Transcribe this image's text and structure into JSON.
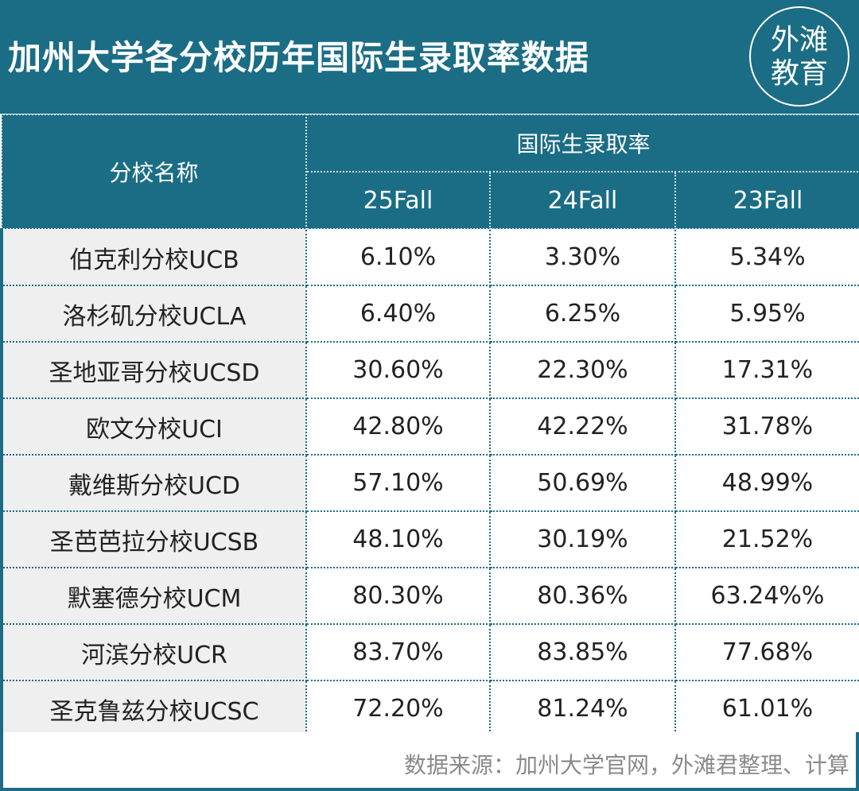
{
  "header": {
    "title": "加州大学各分校历年国际生录取率数据",
    "logo_line1": "外滩",
    "logo_line2": "教育"
  },
  "table": {
    "school_header": "分校名称",
    "rate_group_header": "国际生录取率",
    "years": [
      "25Fall",
      "24Fall",
      "23Fall"
    ],
    "rows": [
      {
        "name": "伯克利分校UCB",
        "values": [
          "6.10%",
          "3.30%",
          "5.34%"
        ]
      },
      {
        "name": "洛杉矶分校UCLA",
        "values": [
          "6.40%",
          "6.25%",
          "5.95%"
        ]
      },
      {
        "name": "圣地亚哥分校UCSD",
        "values": [
          "30.60%",
          "22.30%",
          "17.31%"
        ]
      },
      {
        "name": "欧文分校UCI",
        "values": [
          "42.80%",
          "42.22%",
          "31.78%"
        ]
      },
      {
        "name": "戴维斯分校UCD",
        "values": [
          "57.10%",
          "50.69%",
          "48.99%"
        ]
      },
      {
        "name": "圣芭芭拉分校UCSB",
        "values": [
          "48.10%",
          "30.19%",
          "21.52%"
        ]
      },
      {
        "name": "默塞德分校UCM",
        "values": [
          "80.30%",
          "80.36%",
          "63.24%%"
        ]
      },
      {
        "name": "河滨分校UCR",
        "values": [
          "83.70%",
          "83.85%",
          "77.68%"
        ]
      },
      {
        "name": "圣克鲁兹分校UCSC",
        "values": [
          "72.20%",
          "81.24%",
          "61.01%"
        ]
      }
    ]
  },
  "footer": {
    "source": "数据来源：加州大学官网，外滩君整理、计算"
  },
  "colors": {
    "primary": "#1b6d85",
    "row_label_bg": "#efefef"
  }
}
